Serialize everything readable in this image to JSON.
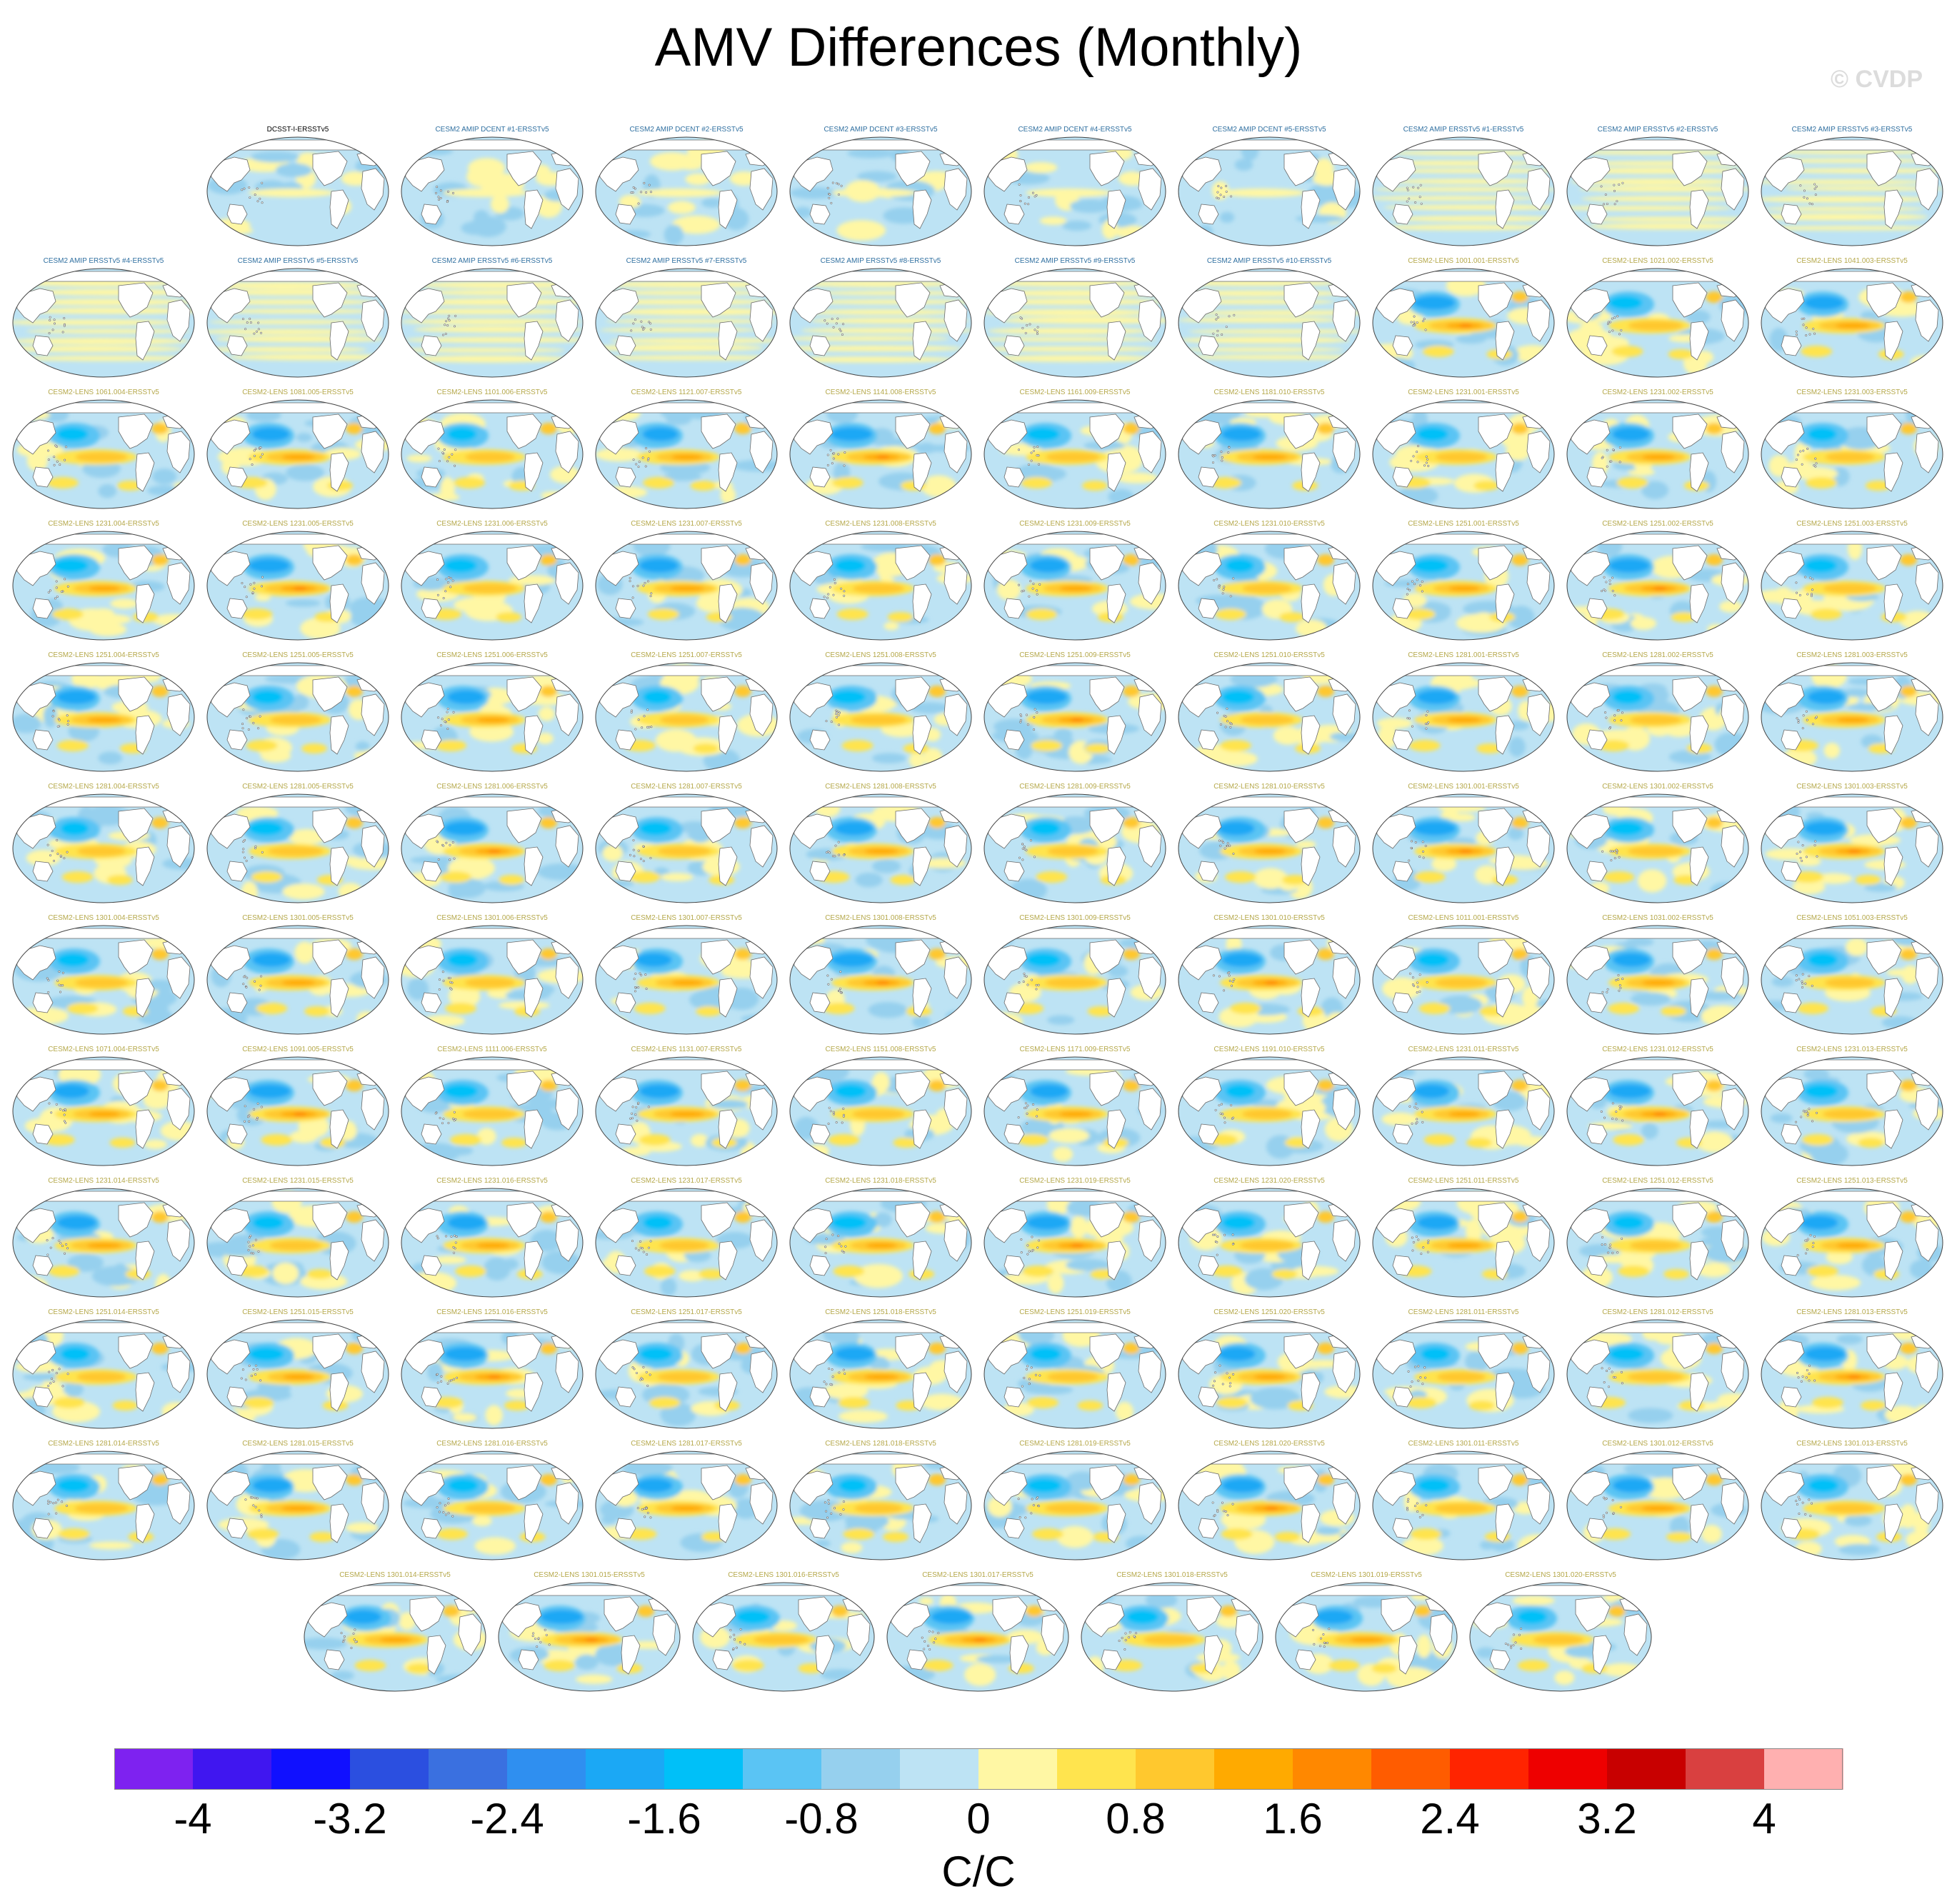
{
  "figure": {
    "title": "AMV Differences (Monthly)",
    "watermark": "© CVDP",
    "colorbar": {
      "colors": [
        "#7e22f0",
        "#4016f0",
        "#1010ff",
        "#2b4fe0",
        "#3a70e0",
        "#2f8ff0",
        "#1ba8f5",
        "#00c0f8",
        "#5ac4f4",
        "#96d0ee",
        "#bde3f4",
        "#fff7a4",
        "#ffe44e",
        "#ffc82e",
        "#ffaa00",
        "#ff8800",
        "#ff5c00",
        "#ff2400",
        "#ee0000",
        "#c80000",
        "#d94040",
        "#ffb0b0"
      ],
      "tick_labels": [
        "-4",
        "-3.2",
        "-2.4",
        "-1.6",
        "-0.8",
        "0",
        "0.8",
        "1.6",
        "2.4",
        "3.2",
        "4"
      ],
      "unit": "C/C"
    },
    "title_colors": {
      "obs": "#000000",
      "amip": "#2f6fa0",
      "lens": "#b5a84a"
    },
    "panels": [
      {
        "title": "DCSST-I-ERSSTv5",
        "kind": "obs"
      },
      {
        "title": "CESM2 AMIP DCENT #1-ERSSTv5",
        "kind": "amip"
      },
      {
        "title": "CESM2 AMIP DCENT #2-ERSSTv5",
        "kind": "amip"
      },
      {
        "title": "CESM2 AMIP DCENT #3-ERSSTv5",
        "kind": "amip"
      },
      {
        "title": "CESM2 AMIP DCENT #4-ERSSTv5",
        "kind": "amip"
      },
      {
        "title": "CESM2 AMIP DCENT #5-ERSSTv5",
        "kind": "amip"
      },
      {
        "title": "CESM2 AMIP ERSSTv5 #1-ERSSTv5",
        "kind": "amip2"
      },
      {
        "title": "CESM2 AMIP ERSSTv5 #2-ERSSTv5",
        "kind": "amip2"
      },
      {
        "title": "CESM2 AMIP ERSSTv5 #3-ERSSTv5",
        "kind": "amip2"
      },
      {
        "title": "CESM2 AMIP ERSSTv5 #4-ERSSTv5",
        "kind": "amip2"
      },
      {
        "title": "CESM2 AMIP ERSSTv5 #5-ERSSTv5",
        "kind": "amip2"
      },
      {
        "title": "CESM2 AMIP ERSSTv5 #6-ERSSTv5",
        "kind": "amip2"
      },
      {
        "title": "CESM2 AMIP ERSSTv5 #7-ERSSTv5",
        "kind": "amip2"
      },
      {
        "title": "CESM2 AMIP ERSSTv5 #8-ERSSTv5",
        "kind": "amip2"
      },
      {
        "title": "CESM2 AMIP ERSSTv5 #9-ERSSTv5",
        "kind": "amip2"
      },
      {
        "title": "CESM2 AMIP ERSSTv5 #10-ERSSTv5",
        "kind": "amip2"
      },
      {
        "title": "CESM2-LENS 1001.001-ERSSTv5",
        "kind": "lens"
      },
      {
        "title": "CESM2-LENS 1021.002-ERSSTv5",
        "kind": "lens"
      },
      {
        "title": "CESM2-LENS 1041.003-ERSSTv5",
        "kind": "lens"
      },
      {
        "title": "CESM2-LENS 1061.004-ERSSTv5",
        "kind": "lens"
      },
      {
        "title": "CESM2-LENS 1081.005-ERSSTv5",
        "kind": "lens"
      },
      {
        "title": "CESM2-LENS 1101.006-ERSSTv5",
        "kind": "lens"
      },
      {
        "title": "CESM2-LENS 1121.007-ERSSTv5",
        "kind": "lens"
      },
      {
        "title": "CESM2-LENS 1141.008-ERSSTv5",
        "kind": "lens"
      },
      {
        "title": "CESM2-LENS 1161.009-ERSSTv5",
        "kind": "lens"
      },
      {
        "title": "CESM2-LENS 1181.010-ERSSTv5",
        "kind": "lens"
      },
      {
        "title": "CESM2-LENS 1231.001-ERSSTv5",
        "kind": "lens"
      },
      {
        "title": "CESM2-LENS 1231.002-ERSSTv5",
        "kind": "lens"
      },
      {
        "title": "CESM2-LENS 1231.003-ERSSTv5",
        "kind": "lens"
      },
      {
        "title": "CESM2-LENS 1231.004-ERSSTv5",
        "kind": "lens"
      },
      {
        "title": "CESM2-LENS 1231.005-ERSSTv5",
        "kind": "lens"
      },
      {
        "title": "CESM2-LENS 1231.006-ERSSTv5",
        "kind": "lens"
      },
      {
        "title": "CESM2-LENS 1231.007-ERSSTv5",
        "kind": "lens"
      },
      {
        "title": "CESM2-LENS 1231.008-ERSSTv5",
        "kind": "lens"
      },
      {
        "title": "CESM2-LENS 1231.009-ERSSTv5",
        "kind": "lens"
      },
      {
        "title": "CESM2-LENS 1231.010-ERSSTv5",
        "kind": "lens"
      },
      {
        "title": "CESM2-LENS 1251.001-ERSSTv5",
        "kind": "lens"
      },
      {
        "title": "CESM2-LENS 1251.002-ERSSTv5",
        "kind": "lens"
      },
      {
        "title": "CESM2-LENS 1251.003-ERSSTv5",
        "kind": "lens"
      },
      {
        "title": "CESM2-LENS 1251.004-ERSSTv5",
        "kind": "lens"
      },
      {
        "title": "CESM2-LENS 1251.005-ERSSTv5",
        "kind": "lens"
      },
      {
        "title": "CESM2-LENS 1251.006-ERSSTv5",
        "kind": "lens"
      },
      {
        "title": "CESM2-LENS 1251.007-ERSSTv5",
        "kind": "lens"
      },
      {
        "title": "CESM2-LENS 1251.008-ERSSTv5",
        "kind": "lens"
      },
      {
        "title": "CESM2-LENS 1251.009-ERSSTv5",
        "kind": "lens"
      },
      {
        "title": "CESM2-LENS 1251.010-ERSSTv5",
        "kind": "lens"
      },
      {
        "title": "CESM2-LENS 1281.001-ERSSTv5",
        "kind": "lens"
      },
      {
        "title": "CESM2-LENS 1281.002-ERSSTv5",
        "kind": "lens"
      },
      {
        "title": "CESM2-LENS 1281.003-ERSSTv5",
        "kind": "lens"
      },
      {
        "title": "CESM2-LENS 1281.004-ERSSTv5",
        "kind": "lens"
      },
      {
        "title": "CESM2-LENS 1281.005-ERSSTv5",
        "kind": "lens"
      },
      {
        "title": "CESM2-LENS 1281.006-ERSSTv5",
        "kind": "lens"
      },
      {
        "title": "CESM2-LENS 1281.007-ERSSTv5",
        "kind": "lens"
      },
      {
        "title": "CESM2-LENS 1281.008-ERSSTv5",
        "kind": "lens"
      },
      {
        "title": "CESM2-LENS 1281.009-ERSSTv5",
        "kind": "lens"
      },
      {
        "title": "CESM2-LENS 1281.010-ERSSTv5",
        "kind": "lens"
      },
      {
        "title": "CESM2-LENS 1301.001-ERSSTv5",
        "kind": "lens"
      },
      {
        "title": "CESM2-LENS 1301.002-ERSSTv5",
        "kind": "lens"
      },
      {
        "title": "CESM2-LENS 1301.003-ERSSTv5",
        "kind": "lens"
      },
      {
        "title": "CESM2-LENS 1301.004-ERSSTv5",
        "kind": "lens"
      },
      {
        "title": "CESM2-LENS 1301.005-ERSSTv5",
        "kind": "lens"
      },
      {
        "title": "CESM2-LENS 1301.006-ERSSTv5",
        "kind": "lens"
      },
      {
        "title": "CESM2-LENS 1301.007-ERSSTv5",
        "kind": "lens"
      },
      {
        "title": "CESM2-LENS 1301.008-ERSSTv5",
        "kind": "lens"
      },
      {
        "title": "CESM2-LENS 1301.009-ERSSTv5",
        "kind": "lens"
      },
      {
        "title": "CESM2-LENS 1301.010-ERSSTv5",
        "kind": "lens"
      },
      {
        "title": "CESM2-LENS 1011.001-ERSSTv5",
        "kind": "lens"
      },
      {
        "title": "CESM2-LENS 1031.002-ERSSTv5",
        "kind": "lens"
      },
      {
        "title": "CESM2-LENS 1051.003-ERSSTv5",
        "kind": "lens"
      },
      {
        "title": "CESM2-LENS 1071.004-ERSSTv5",
        "kind": "lens"
      },
      {
        "title": "CESM2-LENS 1091.005-ERSSTv5",
        "kind": "lens"
      },
      {
        "title": "CESM2-LENS 1111.006-ERSSTv5",
        "kind": "lens"
      },
      {
        "title": "CESM2-LENS 1131.007-ERSSTv5",
        "kind": "lens"
      },
      {
        "title": "CESM2-LENS 1151.008-ERSSTv5",
        "kind": "lens"
      },
      {
        "title": "CESM2-LENS 1171.009-ERSSTv5",
        "kind": "lens"
      },
      {
        "title": "CESM2-LENS 1191.010-ERSSTv5",
        "kind": "lens"
      },
      {
        "title": "CESM2-LENS 1231.011-ERSSTv5",
        "kind": "lens"
      },
      {
        "title": "CESM2-LENS 1231.012-ERSSTv5",
        "kind": "lens"
      },
      {
        "title": "CESM2-LENS 1231.013-ERSSTv5",
        "kind": "lens"
      },
      {
        "title": "CESM2-LENS 1231.014-ERSSTv5",
        "kind": "lens"
      },
      {
        "title": "CESM2-LENS 1231.015-ERSSTv5",
        "kind": "lens"
      },
      {
        "title": "CESM2-LENS 1231.016-ERSSTv5",
        "kind": "lens"
      },
      {
        "title": "CESM2-LENS 1231.017-ERSSTv5",
        "kind": "lens"
      },
      {
        "title": "CESM2-LENS 1231.018-ERSSTv5",
        "kind": "lens"
      },
      {
        "title": "CESM2-LENS 1231.019-ERSSTv5",
        "kind": "lens"
      },
      {
        "title": "CESM2-LENS 1231.020-ERSSTv5",
        "kind": "lens"
      },
      {
        "title": "CESM2-LENS 1251.011-ERSSTv5",
        "kind": "lens"
      },
      {
        "title": "CESM2-LENS 1251.012-ERSSTv5",
        "kind": "lens"
      },
      {
        "title": "CESM2-LENS 1251.013-ERSSTv5",
        "kind": "lens"
      },
      {
        "title": "CESM2-LENS 1251.014-ERSSTv5",
        "kind": "lens"
      },
      {
        "title": "CESM2-LENS 1251.015-ERSSTv5",
        "kind": "lens"
      },
      {
        "title": "CESM2-LENS 1251.016-ERSSTv5",
        "kind": "lens"
      },
      {
        "title": "CESM2-LENS 1251.017-ERSSTv5",
        "kind": "lens"
      },
      {
        "title": "CESM2-LENS 1251.018-ERSSTv5",
        "kind": "lens"
      },
      {
        "title": "CESM2-LENS 1251.019-ERSSTv5",
        "kind": "lens"
      },
      {
        "title": "CESM2-LENS 1251.020-ERSSTv5",
        "kind": "lens"
      },
      {
        "title": "CESM2-LENS 1281.011-ERSSTv5",
        "kind": "lens"
      },
      {
        "title": "CESM2-LENS 1281.012-ERSSTv5",
        "kind": "lens"
      },
      {
        "title": "CESM2-LENS 1281.013-ERSSTv5",
        "kind": "lens"
      },
      {
        "title": "CESM2-LENS 1281.014-ERSSTv5",
        "kind": "lens"
      },
      {
        "title": "CESM2-LENS 1281.015-ERSSTv5",
        "kind": "lens"
      },
      {
        "title": "CESM2-LENS 1281.016-ERSSTv5",
        "kind": "lens"
      },
      {
        "title": "CESM2-LENS 1281.017-ERSSTv5",
        "kind": "lens"
      },
      {
        "title": "CESM2-LENS 1281.018-ERSSTv5",
        "kind": "lens"
      },
      {
        "title": "CESM2-LENS 1281.019-ERSSTv5",
        "kind": "lens"
      },
      {
        "title": "CESM2-LENS 1281.020-ERSSTv5",
        "kind": "lens"
      },
      {
        "title": "CESM2-LENS 1301.011-ERSSTv5",
        "kind": "lens"
      },
      {
        "title": "CESM2-LENS 1301.012-ERSSTv5",
        "kind": "lens"
      },
      {
        "title": "CESM2-LENS 1301.013-ERSSTv5",
        "kind": "lens"
      },
      {
        "title": "CESM2-LENS 1301.014-ERSSTv5",
        "kind": "lens"
      },
      {
        "title": "CESM2-LENS 1301.015-ERSSTv5",
        "kind": "lens"
      },
      {
        "title": "CESM2-LENS 1301.016-ERSSTv5",
        "kind": "lens"
      },
      {
        "title": "CESM2-LENS 1301.017-ERSSTv5",
        "kind": "lens"
      },
      {
        "title": "CESM2-LENS 1301.018-ERSSTv5",
        "kind": "lens"
      },
      {
        "title": "CESM2-LENS 1301.019-ERSSTv5",
        "kind": "lens"
      },
      {
        "title": "CESM2-LENS 1301.020-ERSSTv5",
        "kind": "lens"
      }
    ]
  }
}
